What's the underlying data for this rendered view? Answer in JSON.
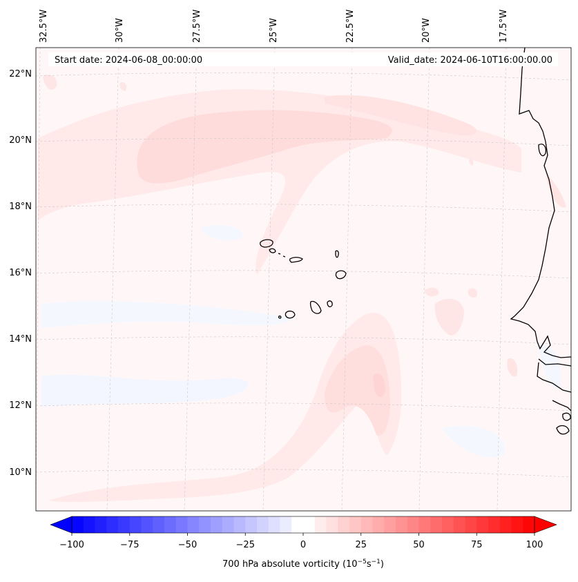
{
  "header": {
    "start_date": "Start date: 2024-06-08_00:00:00",
    "valid_date": "Valid_date: 2024-06-10T16:00:00.00"
  },
  "longitude_labels": [
    "32.5°W",
    "30°W",
    "27.5°W",
    "25°W",
    "22.5°W",
    "20°W",
    "17.5°W"
  ],
  "latitude_labels": [
    "22°N",
    "20°N",
    "18°N",
    "16°N",
    "14°N",
    "12°N",
    "10°N"
  ],
  "colorbar": {
    "label_main": "700 hPa absolute vorticity (10",
    "label_exp1": "−5",
    "label_mid": "s",
    "label_exp2": "−1",
    "label_end": ")",
    "ticks": [
      "−100",
      "−75",
      "−50",
      "−25",
      "0",
      "25",
      "50",
      "75",
      "100"
    ],
    "min": -100,
    "max": 100,
    "step": 5
  },
  "colors": {
    "negative": "#0000ff",
    "positive": "#ff0000",
    "neutral": "#ffffff",
    "coastline": "#000000",
    "gridline": "#c0c0c0"
  }
}
